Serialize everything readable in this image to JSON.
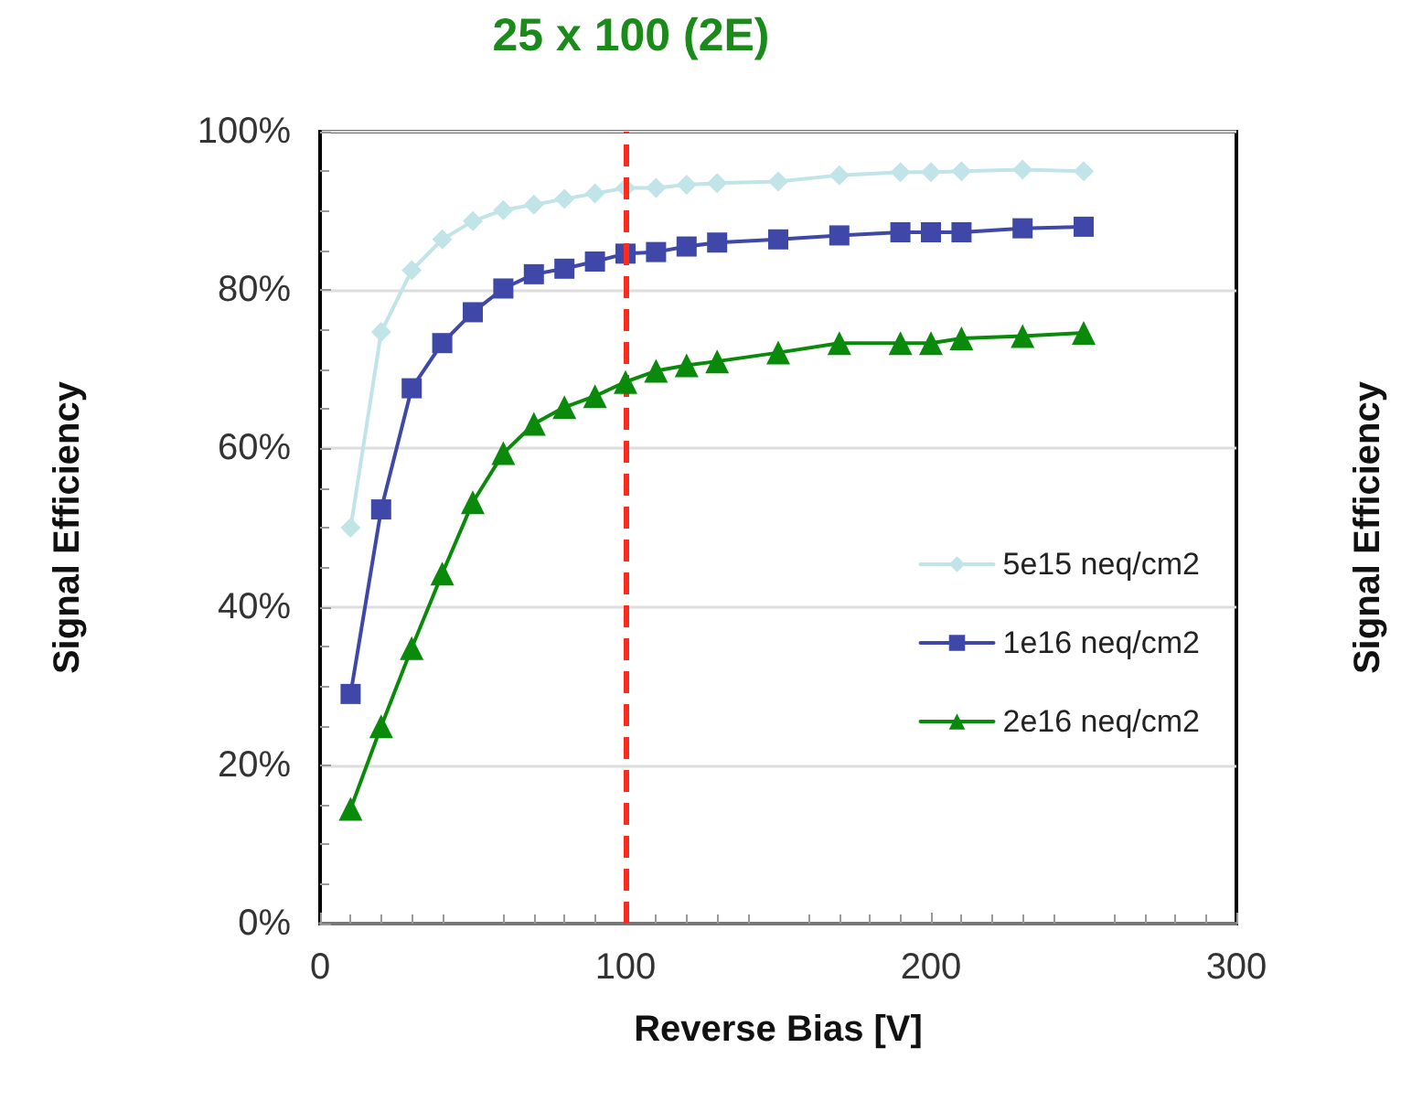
{
  "chart_data": {
    "type": "line",
    "title": "25 x 100 (2E)",
    "xlabel": "Reverse Bias [V]",
    "ylabel": "Signal Efficiency",
    "y2label": "Signal Efficiency",
    "x": [
      10,
      20,
      30,
      40,
      50,
      60,
      70,
      80,
      90,
      100,
      110,
      120,
      130,
      150,
      170,
      190,
      200,
      210,
      230,
      250
    ],
    "series": [
      {
        "name": "5e15 neq/cm2",
        "color": "#c0e4e8",
        "marker": "diamond",
        "values": [
          50,
          74.7,
          82.5,
          86.4,
          88.7,
          90.1,
          90.8,
          91.5,
          92.2,
          92.9,
          92.9,
          93.3,
          93.5,
          93.7,
          94.5,
          94.9,
          94.9,
          95,
          95.2,
          95
        ]
      },
      {
        "name": "1e16 neq/cm2",
        "color": "#3f48a8",
        "marker": "square",
        "values": [
          29,
          52.3,
          67.6,
          73.3,
          77.2,
          80.2,
          82,
          82.7,
          83.6,
          84.6,
          84.8,
          85.5,
          86,
          86.4,
          86.9,
          87.3,
          87.3,
          87.3,
          87.8,
          88
        ]
      },
      {
        "name": "2e16 neq/cm2",
        "color": "#0a8a0a",
        "marker": "triangle",
        "values": [
          14.5,
          24.9,
          34.8,
          44.2,
          53.2,
          59.4,
          63.1,
          65.2,
          66.6,
          68.4,
          69.8,
          70.5,
          71,
          72.1,
          73.3,
          73.3,
          73.3,
          73.9,
          74.2,
          74.6
        ]
      }
    ],
    "xlim": [
      0,
      300
    ],
    "xticks": [
      0,
      100,
      200,
      300
    ],
    "ylim": [
      0,
      100
    ],
    "yticks": [
      {
        "value": 0,
        "label": "0%"
      },
      {
        "value": 20,
        "label": "20%"
      },
      {
        "value": 40,
        "label": "40%"
      },
      {
        "value": 60,
        "label": "60%"
      },
      {
        "value": 80,
        "label": "80%"
      },
      {
        "value": 100,
        "label": "100%"
      }
    ],
    "grid": "y",
    "legend": "right",
    "ref_lines": [
      {
        "axis": "x",
        "value": 100,
        "color": "#ff2a1a",
        "line_style": "dashed"
      }
    ]
  }
}
